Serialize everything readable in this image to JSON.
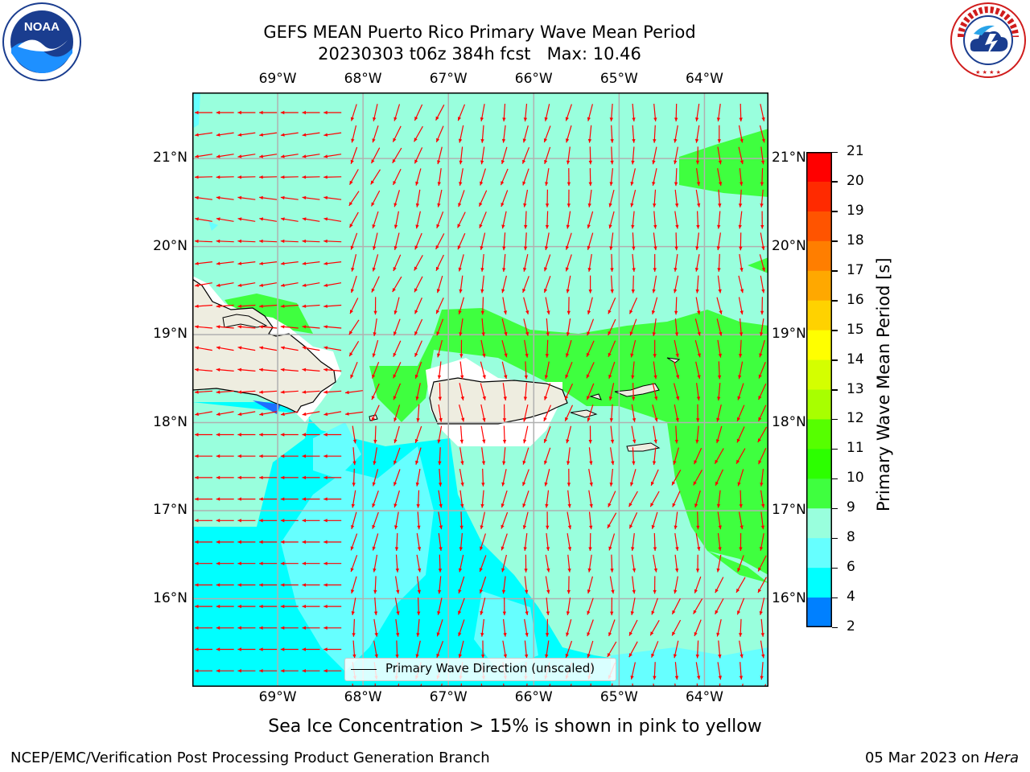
{
  "header": {
    "title_line1": "GEFS MEAN Puerto Rico Primary Wave Mean Period",
    "title_line2": "20230303 t06z 384h fcst   Max: 10.46"
  },
  "logos": {
    "left": {
      "text": "NOAA",
      "ring_text": "NATIONAL OCEANIC AND ATMOSPHERIC ADMINISTRATION · U.S. DEPARTMENT OF COMMERCE",
      "icon": "noaa-logo"
    },
    "right": {
      "ring_text": "NATIONAL WEATHER SERVICE",
      "icon": "nws-logo"
    }
  },
  "map": {
    "lon_labels": [
      "69°W",
      "68°W",
      "67°W",
      "66°W",
      "65°W",
      "64°W"
    ],
    "lat_labels": [
      "21°N",
      "20°N",
      "19°N",
      "18°N",
      "17°N",
      "16°N"
    ],
    "lon_range": [
      -70.0,
      -63.25
    ],
    "lat_range": [
      15.0,
      21.75
    ],
    "grid": true,
    "arrow_color": "#ff0000",
    "legend_label": "Primary Wave Direction (unscaled)"
  },
  "colorbar": {
    "label": "Primary Wave Mean Period [s]",
    "ticks": [
      "21",
      "20",
      "19",
      "18",
      "17",
      "16",
      "15",
      "14",
      "13",
      "12",
      "11",
      "10",
      "9",
      "8",
      "6",
      "4",
      "2"
    ],
    "colors": [
      "#ff0000",
      "#ff2a00",
      "#ff5400",
      "#ff7e00",
      "#ffa800",
      "#ffd200",
      "#ffff00",
      "#d4ff00",
      "#a8ff00",
      "#56ff00",
      "#2cff00",
      "#3fff3f",
      "#99ffdd",
      "#66ffff",
      "#00ffff",
      "#0080ff",
      "#0000ff"
    ]
  },
  "notes": {
    "sea_ice": "Sea Ice Concentration > 15% is shown in pink to yellow",
    "producer": "NCEP/EMC/Verification Post Processing Product Generation Branch",
    "date_prefix": "05 Mar 2023 on ",
    "date_host": "Hera"
  }
}
